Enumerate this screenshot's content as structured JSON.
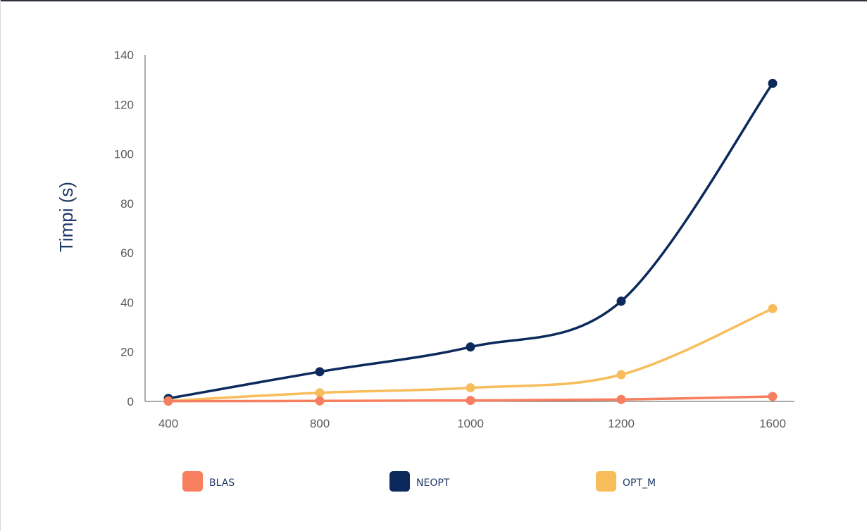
{
  "chart_data": {
    "type": "line",
    "smooth": true,
    "categories": [
      "400",
      "800",
      "1000",
      "1200",
      "1600"
    ],
    "series": [
      {
        "name": "BLAS",
        "color": "#f77e5e",
        "values": [
          0.1,
          0.2,
          0.4,
          0.8,
          2.0
        ]
      },
      {
        "name": "NEOPT",
        "color": "#0b2a5b",
        "values": [
          1.2,
          12,
          22,
          40.5,
          128.5
        ]
      },
      {
        "name": "OPT_M",
        "color": "#f8bd5b",
        "values": [
          0.2,
          3.5,
          5.5,
          10.8,
          37.5
        ]
      }
    ],
    "draw_order": [
      "NEOPT",
      "OPT_M",
      "BLAS"
    ],
    "ylabel": "Timpi (s)",
    "xlabel": "",
    "ylim": [
      0,
      140
    ],
    "yticks": [
      0,
      20,
      40,
      60,
      80,
      100,
      120,
      140
    ],
    "grid": false,
    "legend_position": "bottom"
  }
}
